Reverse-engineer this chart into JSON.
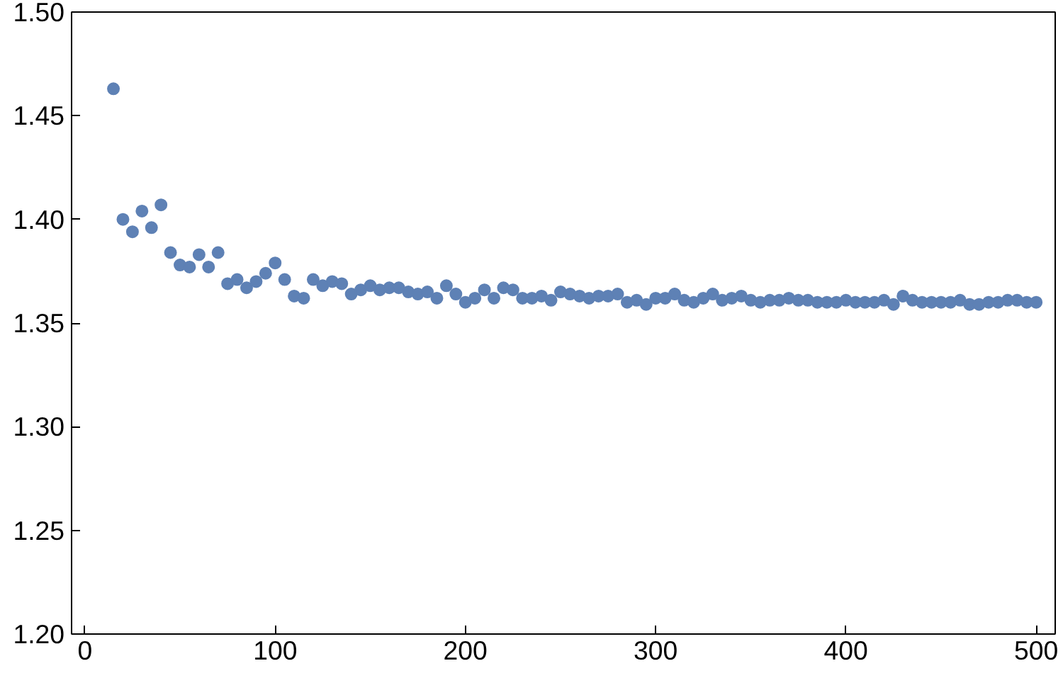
{
  "chart_data": {
    "type": "scatter",
    "marker": "circle",
    "grid": false,
    "xlim": [
      -7,
      510
    ],
    "xticks": [
      0,
      100,
      200,
      300,
      400,
      500
    ],
    "ylim": [
      1.2,
      1.5
    ],
    "yticks": [
      {
        "value": 1.2,
        "label": "1.20"
      },
      {
        "value": 1.25,
        "label": "1.25"
      },
      {
        "value": 1.3,
        "label": "1.30"
      },
      {
        "value": 1.35,
        "label": "1.35"
      },
      {
        "value": 1.4,
        "label": "1.40"
      },
      {
        "value": 1.45,
        "label": "1.45"
      },
      {
        "value": 1.5,
        "label": "1.50"
      }
    ],
    "series": [
      {
        "color": "#5e81b5",
        "x": [
          15,
          20,
          25,
          30,
          35,
          40,
          45,
          50,
          55,
          60,
          65,
          70,
          75,
          80,
          85,
          90,
          95,
          100,
          105,
          110,
          115,
          120,
          125,
          130,
          135,
          140,
          145,
          150,
          155,
          160,
          165,
          170,
          175,
          180,
          185,
          190,
          195,
          200,
          205,
          210,
          215,
          220,
          225,
          230,
          235,
          240,
          245,
          250,
          255,
          260,
          265,
          270,
          275,
          280,
          285,
          290,
          295,
          300,
          305,
          310,
          315,
          320,
          325,
          330,
          335,
          340,
          345,
          350,
          355,
          360,
          365,
          370,
          375,
          380,
          385,
          390,
          395,
          400,
          405,
          410,
          415,
          420,
          425,
          430,
          435,
          440,
          445,
          450,
          455,
          460,
          465,
          470,
          475,
          480,
          485,
          490,
          495,
          500
        ],
        "values": [
          1.463,
          1.4,
          1.394,
          1.404,
          1.396,
          1.407,
          1.384,
          1.378,
          1.377,
          1.383,
          1.377,
          1.384,
          1.369,
          1.371,
          1.367,
          1.37,
          1.374,
          1.379,
          1.371,
          1.363,
          1.362,
          1.371,
          1.368,
          1.37,
          1.369,
          1.364,
          1.366,
          1.368,
          1.366,
          1.367,
          1.367,
          1.365,
          1.364,
          1.365,
          1.362,
          1.368,
          1.364,
          1.36,
          1.362,
          1.366,
          1.362,
          1.367,
          1.366,
          1.362,
          1.362,
          1.363,
          1.361,
          1.365,
          1.364,
          1.363,
          1.362,
          1.363,
          1.363,
          1.364,
          1.36,
          1.361,
          1.359,
          1.362,
          1.362,
          1.364,
          1.361,
          1.36,
          1.362,
          1.364,
          1.361,
          1.362,
          1.363,
          1.361,
          1.36,
          1.361,
          1.361,
          1.362,
          1.361,
          1.361,
          1.36,
          1.36,
          1.36,
          1.361,
          1.36,
          1.36,
          1.36,
          1.361,
          1.359,
          1.363,
          1.361,
          1.36,
          1.36,
          1.36,
          1.36,
          1.361,
          1.359,
          1.359,
          1.36,
          1.36,
          1.361,
          1.361,
          1.36,
          1.36
        ]
      }
    ]
  }
}
